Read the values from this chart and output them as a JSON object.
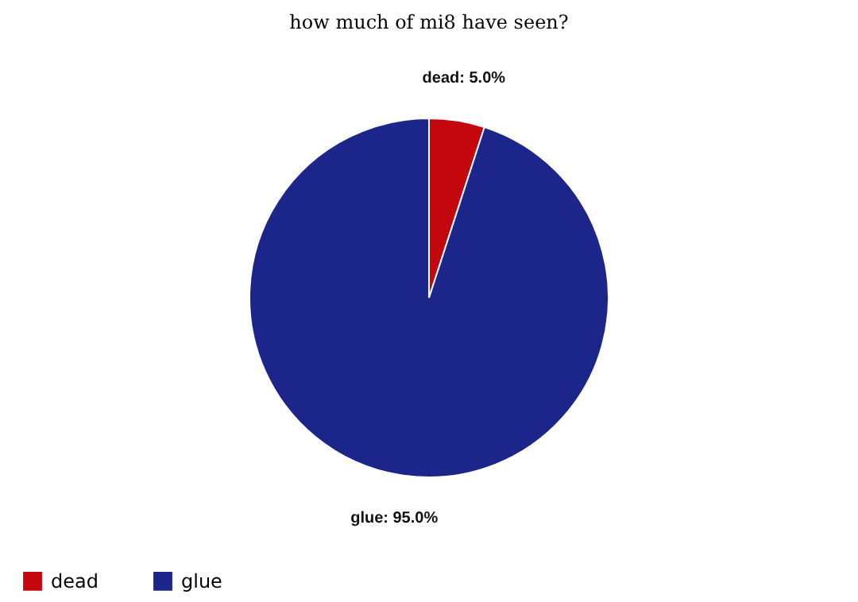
{
  "chart_data": {
    "type": "pie",
    "title": "how much of mi8 have seen?",
    "categories": [
      "dead",
      "glue"
    ],
    "values": [
      5,
      95
    ],
    "colors": [
      "#c4070f",
      "#1b258a"
    ],
    "value_labels": [
      "dead: 5.0%",
      "glue: 95.0%"
    ],
    "legend": "bottom"
  }
}
